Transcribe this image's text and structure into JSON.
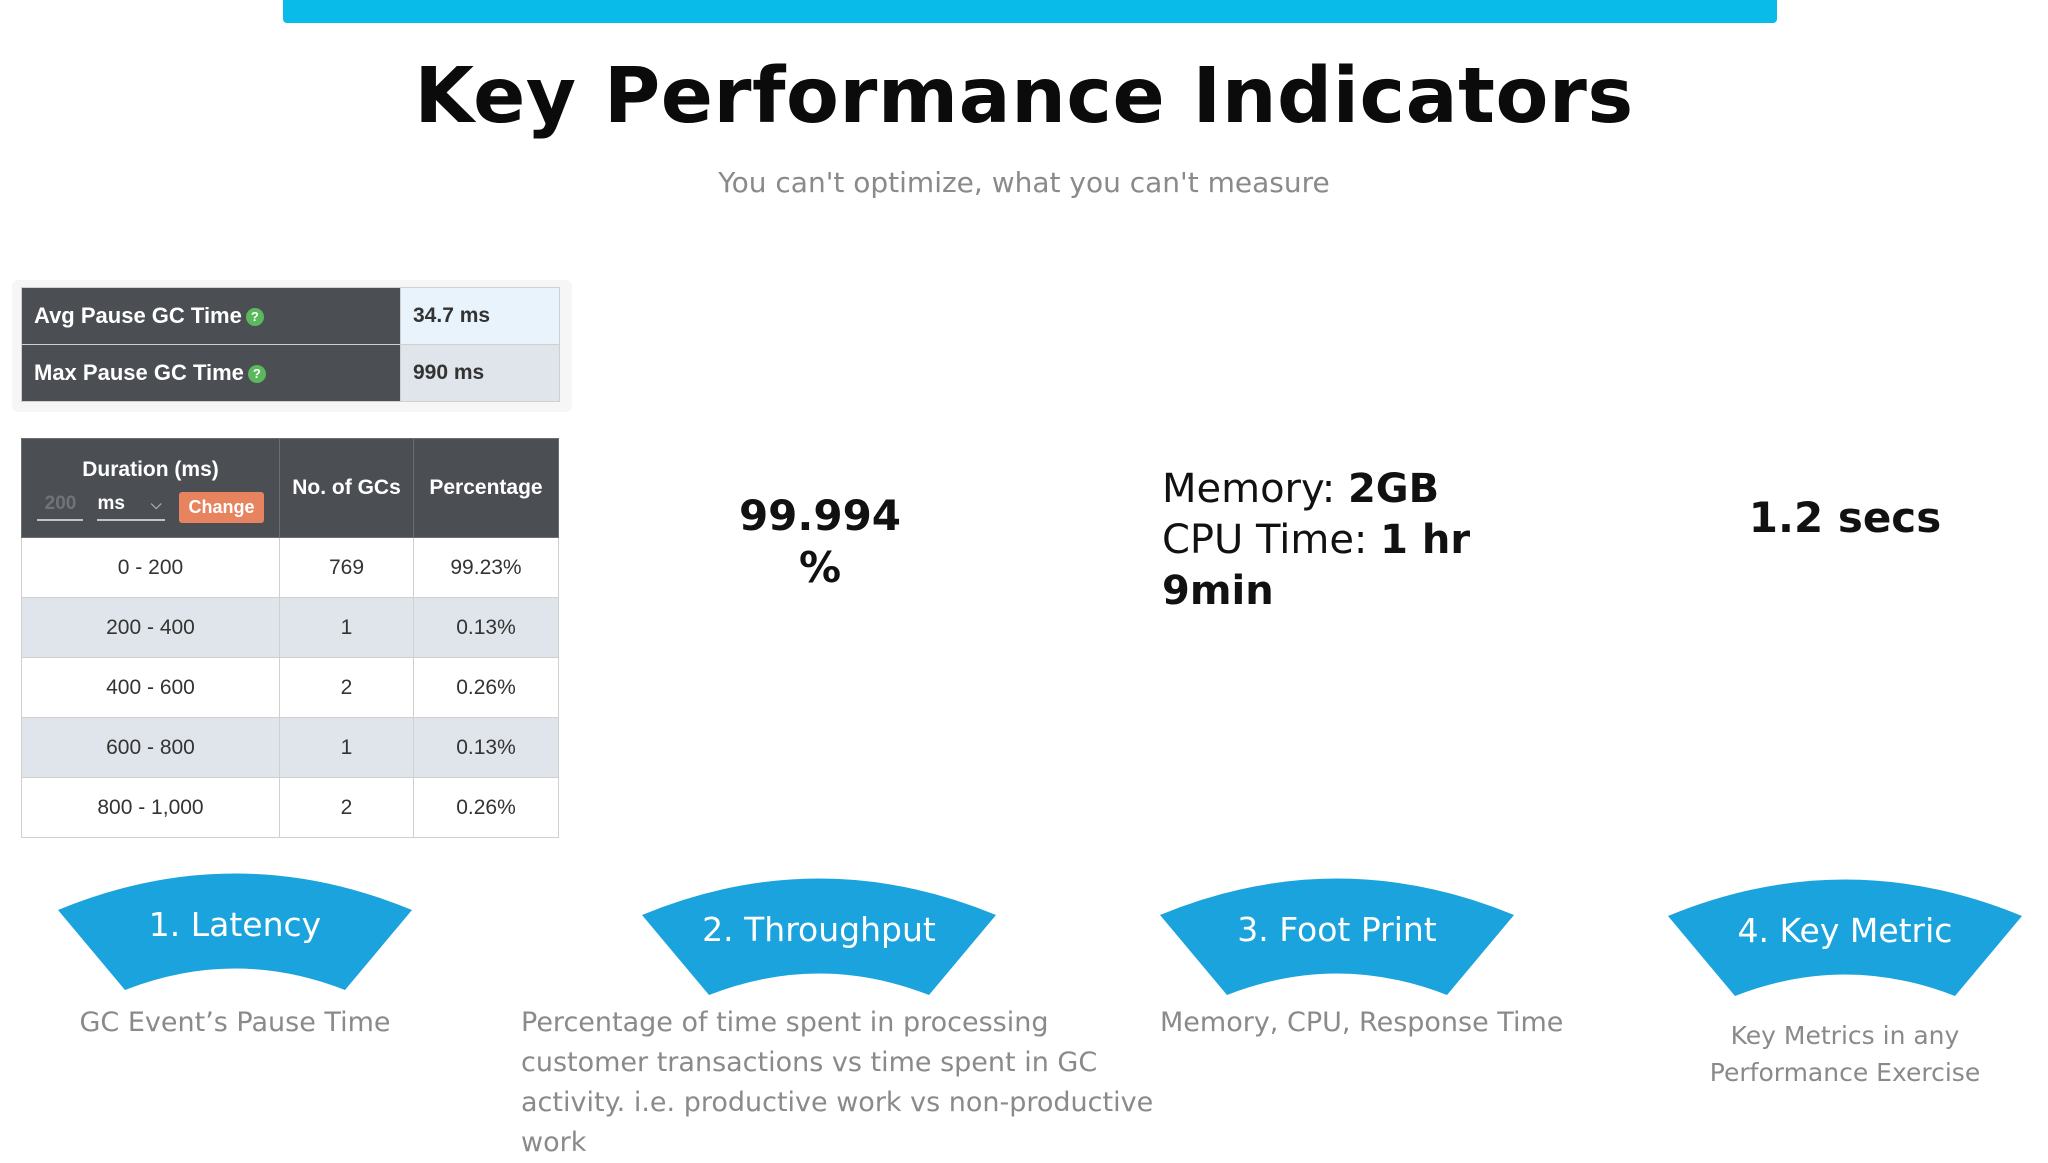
{
  "header": {
    "title": "Key Performance Indicators",
    "subtitle": "You can't optimize, what you can't measure"
  },
  "pause_table": {
    "rows": [
      {
        "label": "Avg Pause GC Time",
        "value": "34.7 ms"
      },
      {
        "label": "Max Pause GC Time",
        "value": "990 ms"
      }
    ],
    "help_glyph": "?"
  },
  "duration_table": {
    "headers": {
      "duration": "Duration (ms)",
      "count": "No. of GCs",
      "percentage": "Percentage"
    },
    "controls": {
      "interval_value": "200",
      "unit": "ms",
      "chevron": "⌵",
      "change_label": "Change"
    },
    "rows": [
      [
        "0 - 200",
        "769",
        "99.23%"
      ],
      [
        "200 - 400",
        "1",
        "0.13%"
      ],
      [
        "400 - 600",
        "2",
        "0.26%"
      ],
      [
        "600 - 800",
        "1",
        "0.13%"
      ],
      [
        "800 - 1,000",
        "2",
        "0.26%"
      ]
    ]
  },
  "kpis": {
    "throughput": {
      "value": "99.994",
      "unit": "%"
    },
    "footprint": {
      "memory_label": "Memory:",
      "memory_value": "2GB",
      "cpu_label": "CPU Time:",
      "cpu_value": "1 hr",
      "cpu_value_2": "9min"
    },
    "key_metric": {
      "value": "1.2 secs"
    }
  },
  "banners": [
    {
      "label": "1. Latency",
      "description": "GC Event’s Pause Time"
    },
    {
      "label": "2. Throughput",
      "description_lines": [
        "Percentage of time spent in processing",
        "customer transactions vs time spent in GC",
        "activity. i.e. productive work vs  non-productive",
        "work"
      ]
    },
    {
      "label": "3. Foot Print",
      "description": "Memory, CPU, Response Time"
    },
    {
      "label": "4. Key Metric",
      "description_lines": [
        "Key Metrics in any",
        "Performance Exercise"
      ]
    }
  ],
  "colors": {
    "accent": "#08bbe8",
    "banner": "#1aa3dc",
    "table_header": "#4b4f53",
    "change_button": "#e8835f",
    "help_icon": "#5cb85c"
  }
}
